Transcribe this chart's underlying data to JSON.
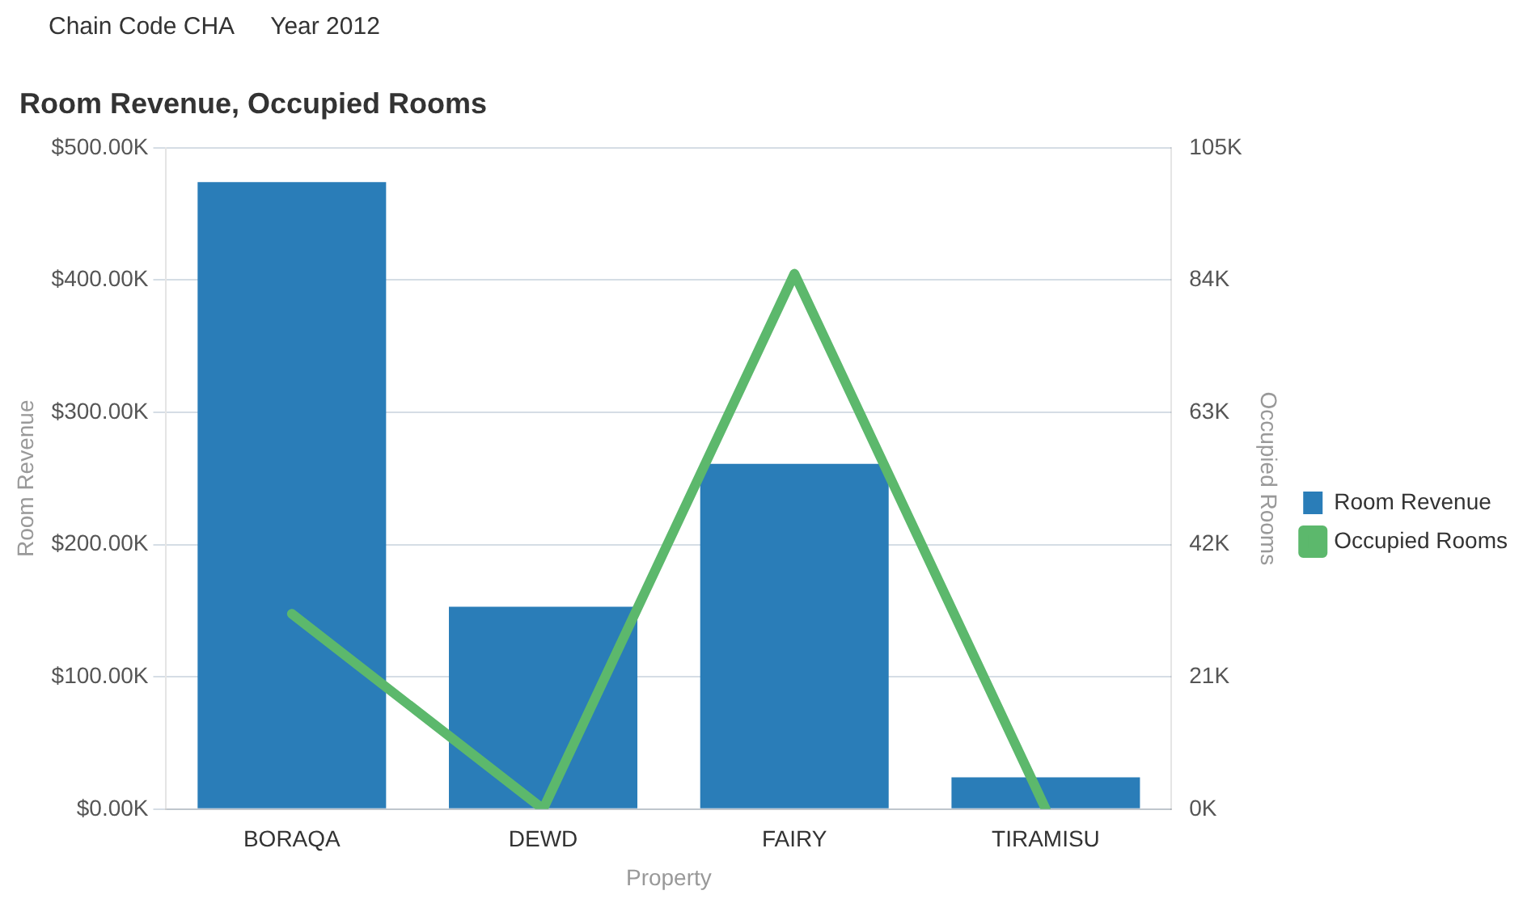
{
  "chart_data": {
    "type": "bar",
    "title": "Room Revenue, Occupied Rooms",
    "annotations": [
      "Chain Code CHA",
      "Year 2012"
    ],
    "xlabel": "Property",
    "ylabel": "Room Revenue",
    "y2label": "Occupied Rooms",
    "categories": [
      "BORAQA",
      "DEWD",
      "FAIRY",
      "TIRAMISU"
    ],
    "series": [
      {
        "name": "Room Revenue",
        "color": "#2a7db8",
        "values": [
          474000,
          153000,
          261000,
          24000
        ]
      },
      {
        "name": "Occupied Rooms",
        "type": "line",
        "axis": "y2",
        "color": "#5cb86c",
        "values": [
          31000,
          0,
          85000,
          0
        ]
      }
    ],
    "ylim": [
      0,
      500000
    ],
    "yticks": [
      {
        "value": 0,
        "label": "$0.00K"
      },
      {
        "value": 100000,
        "label": "$100.00K"
      },
      {
        "value": 200000,
        "label": "$200.00K"
      },
      {
        "value": 300000,
        "label": "$300.00K"
      },
      {
        "value": 400000,
        "label": "$400.00K"
      },
      {
        "value": 500000,
        "label": "$500.00K"
      }
    ],
    "y2lim": [
      0,
      105000
    ],
    "y2ticks": [
      {
        "value": 0,
        "label": "0K"
      },
      {
        "value": 21000,
        "label": "21K"
      },
      {
        "value": 42000,
        "label": "42K"
      },
      {
        "value": 63000,
        "label": "63K"
      },
      {
        "value": 84000,
        "label": "84K"
      },
      {
        "value": 105000,
        "label": "105K"
      }
    ],
    "grid": "y",
    "legend": "right",
    "marker": "none"
  }
}
